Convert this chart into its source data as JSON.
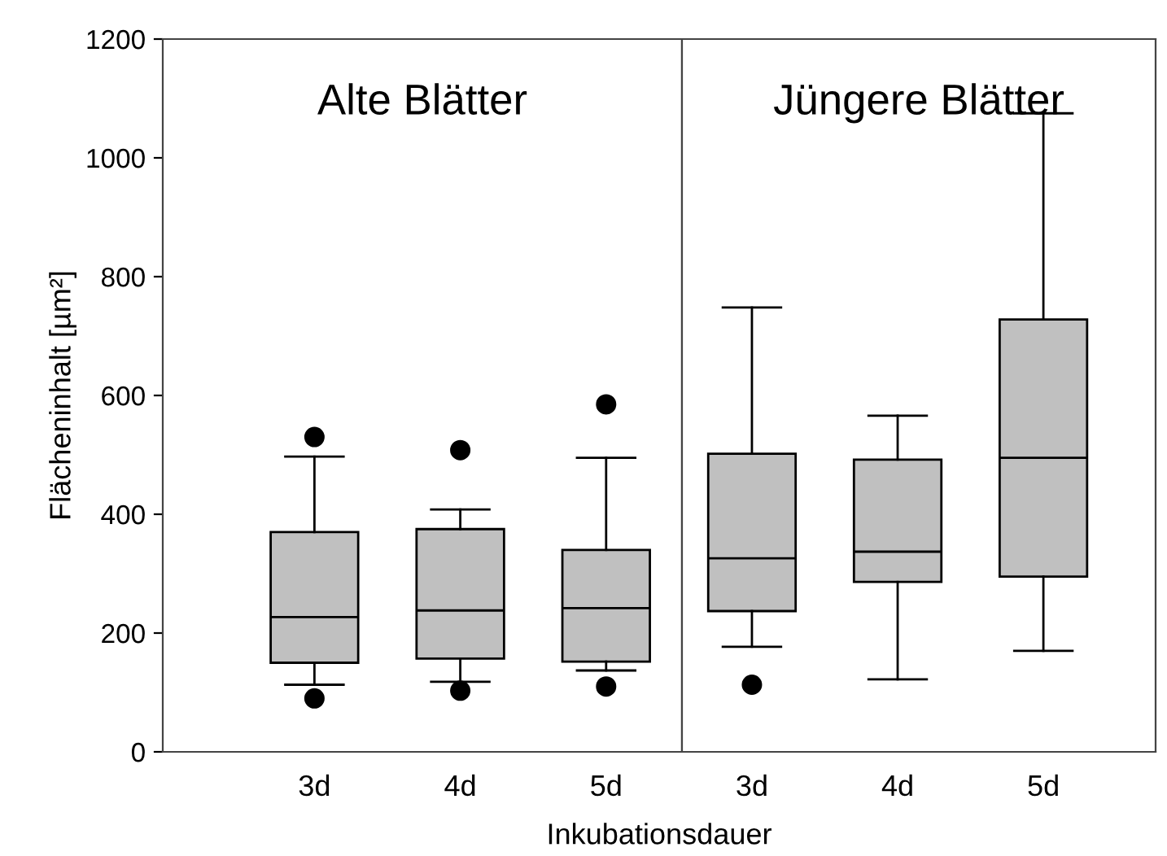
{
  "chart_data": [
    {
      "type": "box",
      "title": "Alte Blätter",
      "xlabel": "Inkubationsdauer",
      "ylabel": "Flächeninhalt [µm²]",
      "categories": [
        "3d",
        "4d",
        "5d"
      ],
      "ylim": [
        0,
        1200
      ],
      "yticks": [
        0,
        200,
        400,
        600,
        800,
        1000,
        1200
      ],
      "color": "#c0c0c0",
      "grid": false,
      "boxes": [
        {
          "low": 113,
          "q1": 150,
          "median": 227,
          "q3": 370,
          "high": 497,
          "outliers": [
            90,
            530
          ]
        },
        {
          "low": 118,
          "q1": 157,
          "median": 238,
          "q3": 375,
          "high": 408,
          "outliers": [
            103,
            508
          ]
        },
        {
          "low": 137,
          "q1": 152,
          "median": 242,
          "q3": 340,
          "high": 495,
          "outliers": [
            110,
            585
          ]
        }
      ]
    },
    {
      "type": "box",
      "title": "Jüngere Blätter",
      "categories": [
        "3d",
        "4d",
        "5d"
      ],
      "ylim": [
        0,
        1200
      ],
      "yticks": [
        0,
        200,
        400,
        600,
        800,
        1000,
        1200
      ],
      "tick_labels": "x",
      "color": "#c0c0c0",
      "grid": false,
      "boxes": [
        {
          "low": 177,
          "q1": 237,
          "median": 326,
          "q3": 502,
          "high": 748,
          "outliers": [
            113
          ]
        },
        {
          "low": 122,
          "q1": 286,
          "median": 337,
          "q3": 492,
          "high": 566
        },
        {
          "low": 170,
          "q1": 295,
          "median": 495,
          "q3": 728,
          "high": 1075
        }
      ]
    }
  ]
}
